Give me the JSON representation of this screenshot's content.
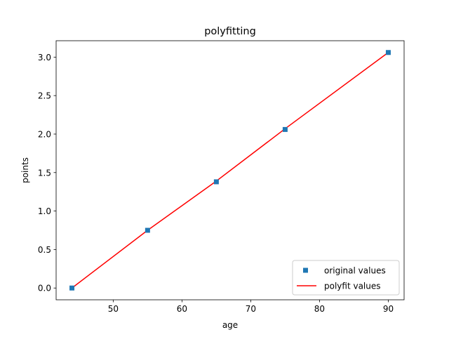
{
  "chart_data": {
    "type": "scatter",
    "title": "polyfitting",
    "xlabel": "age",
    "ylabel": "points",
    "xlim": [
      41.7,
      92.3
    ],
    "ylim": [
      -0.153,
      3.213
    ],
    "xticks": [
      50,
      60,
      70,
      80,
      90
    ],
    "yticks": [
      0.0,
      0.5,
      1.0,
      1.5,
      2.0,
      2.5,
      3.0
    ],
    "grid": false,
    "legend_position": "lower-right",
    "series": [
      {
        "name": "original values",
        "kind": "scatter",
        "marker": "square",
        "color": "#1f77b4",
        "x": [
          44,
          55,
          65,
          75,
          90
        ],
        "y": [
          0.0,
          0.75,
          1.38,
          2.06,
          3.06
        ]
      },
      {
        "name": "polyfit values",
        "kind": "line",
        "color": "#ff0000",
        "x": [
          44,
          55,
          65,
          75,
          90
        ],
        "y": [
          0.0,
          0.75,
          1.39,
          2.07,
          3.06
        ]
      }
    ]
  }
}
